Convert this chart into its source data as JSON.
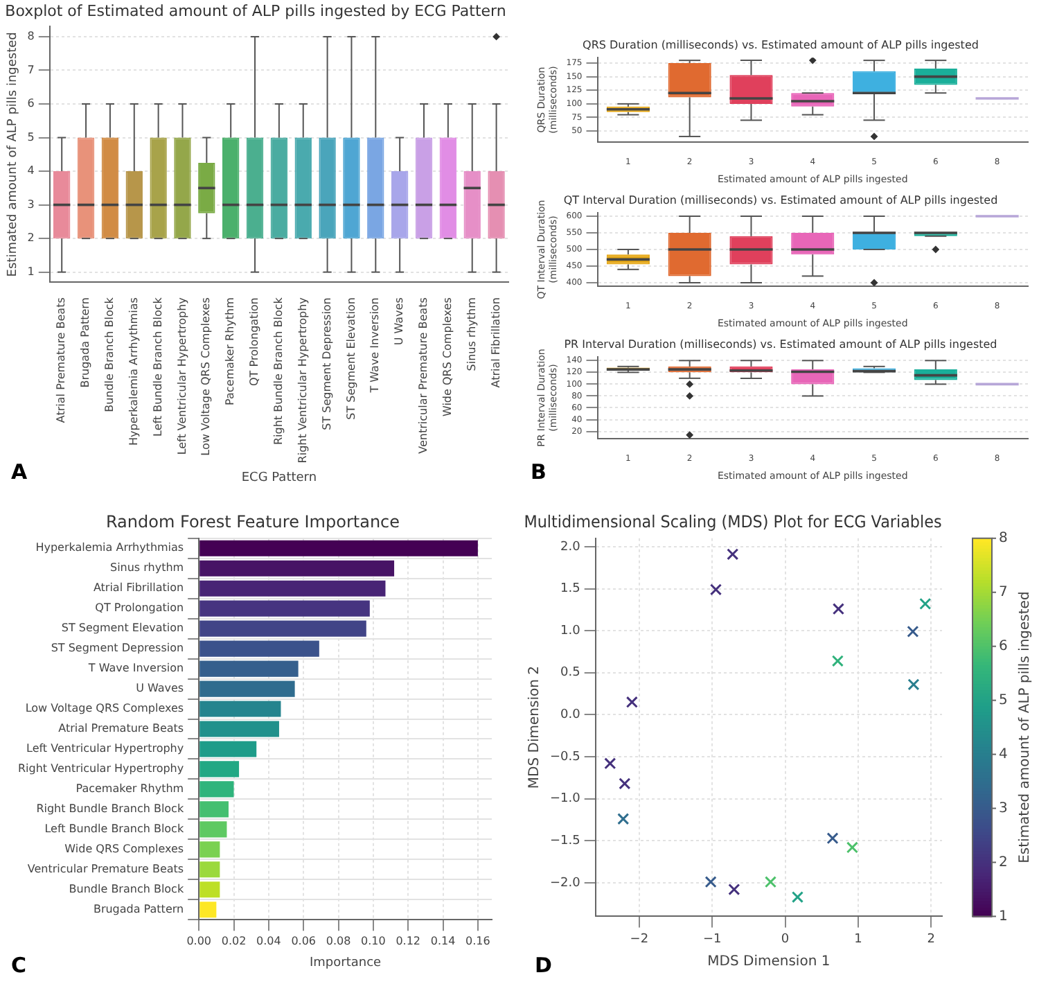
{
  "chart_data": [
    {
      "type": "box",
      "title": "Boxplot of Estimated amount of ALP pills ingested by ECG Pattern",
      "xlabel": "ECG Pattern",
      "ylabel": "Estimated amount of ALP pills ingested",
      "annotations": [
        "A"
      ],
      "grid": "y",
      "categories": [
        "Atrial Premature Beats",
        "Brugada Pattern",
        "Bundle Branch Block",
        "Hyperkalemia Arrhythmias",
        "Left Bundle Branch Block",
        "Left Ventricular Hypertrophy",
        "Low Voltage QRS Complexes",
        "Pacemaker Rhythm",
        "QT Prolongation",
        "Right Bundle Branch Block",
        "Right Ventricular Hypertrophy",
        "ST Segment Depression",
        "ST Segment Elevation",
        "T Wave Inversion",
        "U Waves",
        "Ventricular Premature Beats",
        "Wide QRS Complexes",
        "Sinus rhythm",
        "Atrial Fibrillation"
      ],
      "colors": [
        "#e88a9a",
        "#e8927a",
        "#d18c45",
        "#b7964a",
        "#a8a34a",
        "#94a74a",
        "#7aab45",
        "#4bb06c",
        "#4baf8f",
        "#4aaca1",
        "#4aaaae",
        "#4aa5bb",
        "#4fa6d3",
        "#7aa6e3",
        "#a8a6ea",
        "#c9a0e6",
        "#e18de5",
        "#e68fc7",
        "#e58fb2"
      ],
      "ylim": [
        0.7,
        8.3
      ],
      "yticks": [
        1,
        2,
        3,
        4,
        5,
        6,
        7,
        8
      ],
      "boxes": [
        {
          "low": 1,
          "q1": 2,
          "median": 3,
          "q3": 4,
          "high": 5
        },
        {
          "low": 2,
          "q1": 2,
          "median": 3,
          "q3": 5,
          "high": 6
        },
        {
          "low": 2,
          "q1": 2,
          "median": 3,
          "q3": 5,
          "high": 6
        },
        {
          "low": 2,
          "q1": 2,
          "median": 3,
          "q3": 4,
          "high": 6
        },
        {
          "low": 2,
          "q1": 2,
          "median": 3,
          "q3": 5,
          "high": 6
        },
        {
          "low": 2,
          "q1": 2,
          "median": 3,
          "q3": 5,
          "high": 6
        },
        {
          "low": 2,
          "q1": 2.75,
          "median": 3.5,
          "q3": 4.25,
          "high": 5
        },
        {
          "low": 2,
          "q1": 2,
          "median": 3,
          "q3": 5,
          "high": 6
        },
        {
          "low": 1,
          "q1": 2,
          "median": 3,
          "q3": 5,
          "high": 8
        },
        {
          "low": 2,
          "q1": 2,
          "median": 3,
          "q3": 5,
          "high": 6
        },
        {
          "low": 2,
          "q1": 2,
          "median": 3,
          "q3": 5,
          "high": 6
        },
        {
          "low": 1,
          "q1": 2,
          "median": 3,
          "q3": 5,
          "high": 8
        },
        {
          "low": 1,
          "q1": 2,
          "median": 3,
          "q3": 5,
          "high": 8
        },
        {
          "low": 1,
          "q1": 2,
          "median": 3,
          "q3": 5,
          "high": 8
        },
        {
          "low": 1,
          "q1": 2,
          "median": 3,
          "q3": 4,
          "high": 5
        },
        {
          "low": 2,
          "q1": 2,
          "median": 3,
          "q3": 5,
          "high": 6
        },
        {
          "low": 2,
          "q1": 2,
          "median": 3,
          "q3": 5,
          "high": 6
        },
        {
          "low": 1,
          "q1": 2,
          "median": 3.5,
          "q3": 4,
          "high": 6
        },
        {
          "low": 1,
          "q1": 2,
          "median": 3,
          "q3": 4,
          "high": 6,
          "outliers": [
            8
          ]
        }
      ]
    },
    {
      "type": "box",
      "title": "QRS Duration (milliseconds) vs. Estimated amount of ALP pills ingested",
      "xlabel": "Estimated amount of ALP pills ingested",
      "ylabel": "QRS Duration (milliseconds)",
      "grid": "y",
      "categories": [
        "1",
        "2",
        "3",
        "4",
        "5",
        "6",
        "8"
      ],
      "colors": [
        "#e6a817",
        "#e06a30",
        "#e0405c",
        "#e866b8",
        "#3eb0e0",
        "#1aaf9a",
        "#b7a6d8"
      ],
      "ylim": [
        30,
        185
      ],
      "yticks": [
        50,
        75,
        100,
        125,
        150,
        175
      ],
      "boxes": [
        {
          "low": 80,
          "q1": 85,
          "median": 90,
          "q3": 95,
          "high": 100
        },
        {
          "low": 40,
          "q1": 112,
          "median": 120,
          "q3": 175,
          "high": 180
        },
        {
          "low": 70,
          "q1": 100,
          "median": 110,
          "q3": 153,
          "high": 180
        },
        {
          "low": 80,
          "q1": 95,
          "median": 105,
          "q3": 120,
          "high": 120,
          "outliers": [
            180
          ]
        },
        {
          "low": 70,
          "q1": 120,
          "median": 120,
          "q3": 160,
          "high": 180,
          "outliers": [
            40
          ]
        },
        {
          "low": 120,
          "q1": 135,
          "median": 150,
          "q3": 165,
          "high": 180
        },
        {
          "low": 110,
          "q1": 110,
          "median": 110,
          "q3": 110,
          "high": 110
        }
      ]
    },
    {
      "type": "box",
      "title": "QT Interval Duration (milliseconds) vs. Estimated amount of ALP pills ingested",
      "xlabel": "Estimated amount of ALP pills ingested",
      "ylabel": "QT Interval Duration (milliseconds)",
      "grid": "y",
      "categories": [
        "1",
        "2",
        "3",
        "4",
        "5",
        "6",
        "8"
      ],
      "colors": [
        "#e6a817",
        "#e06a30",
        "#e0405c",
        "#e866b8",
        "#3eb0e0",
        "#1aaf9a",
        "#b7a6d8"
      ],
      "ylim": [
        390,
        610
      ],
      "yticks": [
        400,
        450,
        500,
        550,
        600
      ],
      "boxes": [
        {
          "low": 440,
          "q1": 455,
          "median": 470,
          "q3": 485,
          "high": 500
        },
        {
          "low": 400,
          "q1": 420,
          "median": 500,
          "q3": 550,
          "high": 600
        },
        {
          "low": 400,
          "q1": 455,
          "median": 500,
          "q3": 540,
          "high": 600
        },
        {
          "low": 420,
          "q1": 485,
          "median": 500,
          "q3": 550,
          "high": 600
        },
        {
          "low": 500,
          "q1": 500,
          "median": 550,
          "q3": 550,
          "high": 600,
          "outliers": [
            400
          ]
        },
        {
          "low": 540,
          "q1": 540,
          "median": 550,
          "q3": 550,
          "high": 550,
          "outliers": [
            500
          ]
        },
        {
          "low": 600,
          "q1": 600,
          "median": 600,
          "q3": 600,
          "high": 600
        }
      ]
    },
    {
      "type": "box",
      "title": "PR Interval Duration (milliseconds) vs. Estimated amount of ALP pills ingested",
      "xlabel": "Estimated amount of ALP pills ingested",
      "ylabel": "PR Interval Duration (milliseconds)",
      "annotations": [
        "B"
      ],
      "grid": "y",
      "categories": [
        "1",
        "2",
        "3",
        "4",
        "5",
        "6",
        "8"
      ],
      "colors": [
        "#e6a817",
        "#e06a30",
        "#e0405c",
        "#e866b8",
        "#3eb0e0",
        "#1aaf9a",
        "#b7a6d8"
      ],
      "ylim": [
        8,
        146
      ],
      "yticks": [
        20,
        40,
        60,
        80,
        100,
        120,
        140
      ],
      "boxes": [
        {
          "low": 120,
          "q1": 124,
          "median": 125,
          "q3": 128,
          "high": 130
        },
        {
          "low": 110,
          "q1": 120,
          "median": 125,
          "q3": 130,
          "high": 140,
          "outliers": [
            100,
            80,
            14
          ]
        },
        {
          "low": 110,
          "q1": 120,
          "median": 123,
          "q3": 130,
          "high": 140
        },
        {
          "low": 80,
          "q1": 100,
          "median": 121,
          "q3": 125,
          "high": 140
        },
        {
          "low": 120,
          "q1": 120,
          "median": 122,
          "q3": 127,
          "high": 130
        },
        {
          "low": 100,
          "q1": 107,
          "median": 115,
          "q3": 125,
          "high": 140
        },
        {
          "low": 100,
          "q1": 100,
          "median": 100,
          "q3": 100,
          "high": 100
        }
      ]
    },
    {
      "type": "bar",
      "orientation": "horizontal",
      "title": "Random Forest Feature Importance",
      "xlabel": "Importance",
      "annotations": [
        "C"
      ],
      "grid": true,
      "categories": [
        "Hyperkalemia Arrhythmias",
        "Sinus rhythm",
        "Atrial Fibrillation",
        "QT Prolongation",
        "ST Segment Elevation",
        "ST Segment Depression",
        "T Wave Inversion",
        "U Waves",
        "Low Voltage QRS Complexes",
        "Atrial Premature Beats",
        "Left Ventricular Hypertrophy",
        "Right Ventricular Hypertrophy",
        "Pacemaker Rhythm",
        "Right Bundle Branch Block",
        "Left Bundle Branch Block",
        "Wide QRS Complexes",
        "Ventricular Premature Beats",
        "Bundle Branch Block",
        "Brugada Pattern"
      ],
      "values": [
        0.16,
        0.112,
        0.107,
        0.098,
        0.096,
        0.069,
        0.057,
        0.055,
        0.047,
        0.046,
        0.033,
        0.023,
        0.02,
        0.017,
        0.016,
        0.012,
        0.012,
        0.012,
        0.01
      ],
      "colors": [
        "#440154",
        "#471365",
        "#482475",
        "#463480",
        "#414487",
        "#3b528b",
        "#355f8d",
        "#2f6c8e",
        "#25848e",
        "#21918c",
        "#1e9c89",
        "#22a884",
        "#2fb47c",
        "#44bf70",
        "#5ec962",
        "#7ad151",
        "#9bd93c",
        "#bddf26",
        "#fde725"
      ],
      "xlim": [
        0,
        0.168
      ],
      "xticks": [
        {
          "value": 0,
          "label": "0.00"
        },
        {
          "value": 0.02,
          "label": "0.02"
        },
        {
          "value": 0.04,
          "label": "0.04"
        },
        {
          "value": 0.06,
          "label": "0.06"
        },
        {
          "value": 0.08,
          "label": "0.08"
        },
        {
          "value": 0.1,
          "label": "0.10"
        },
        {
          "value": 0.12,
          "label": "0.12"
        },
        {
          "value": 0.14,
          "label": "0.14"
        },
        {
          "value": 0.16,
          "label": "0.16"
        }
      ]
    },
    {
      "type": "scatter",
      "title": "Multidimensional Scaling (MDS) Plot for ECG Variables",
      "xlabel": "MDS Dimension 1",
      "ylabel": "MDS Dimension 2",
      "clabel": "Estimated amount of ALP pills ingested",
      "annotations": [
        "D"
      ],
      "grid": true,
      "marker": "cross",
      "x": [
        -0.72,
        -0.95,
        0.73,
        1.92,
        1.75,
        0.72,
        1.76,
        -2.1,
        -2.4,
        -2.2,
        -2.22,
        0.65,
        0.92,
        -1.02,
        -0.7,
        -0.2,
        0.17
      ],
      "values": [
        1.91,
        1.49,
        1.26,
        1.32,
        0.99,
        0.64,
        0.36,
        0.15,
        -0.58,
        -0.82,
        -1.24,
        -1.47,
        -1.58,
        -1.99,
        -2.08,
        -1.99,
        -2.17
      ],
      "cvalues": [
        2,
        2,
        2,
        5,
        3,
        5.5,
        4,
        2,
        2,
        2,
        3.5,
        3,
        6,
        3,
        2,
        6,
        5
      ],
      "clim": [
        1,
        8
      ],
      "cticks": [
        1,
        2,
        3,
        4,
        5,
        6,
        7,
        8
      ],
      "xlim": [
        -2.6,
        2.15
      ],
      "xticks": [
        {
          "value": -2,
          "label": "−2"
        },
        {
          "value": -1,
          "label": "−1"
        },
        {
          "value": 0,
          "label": "0"
        },
        1,
        2
      ],
      "ylim": [
        -2.4,
        2.1
      ],
      "yticks": [
        {
          "value": -2,
          "label": "−2.0"
        },
        {
          "value": -1.5,
          "label": "−1.5"
        },
        {
          "value": -1,
          "label": "−1.0"
        },
        {
          "value": -0.5,
          "label": "−0.5"
        },
        {
          "value": 0,
          "label": "0.0"
        },
        {
          "value": 0.5,
          "label": "0.5"
        },
        {
          "value": 1,
          "label": "1.0"
        },
        {
          "value": 1.5,
          "label": "1.5"
        },
        {
          "value": 2,
          "label": "2.0"
        }
      ]
    }
  ]
}
